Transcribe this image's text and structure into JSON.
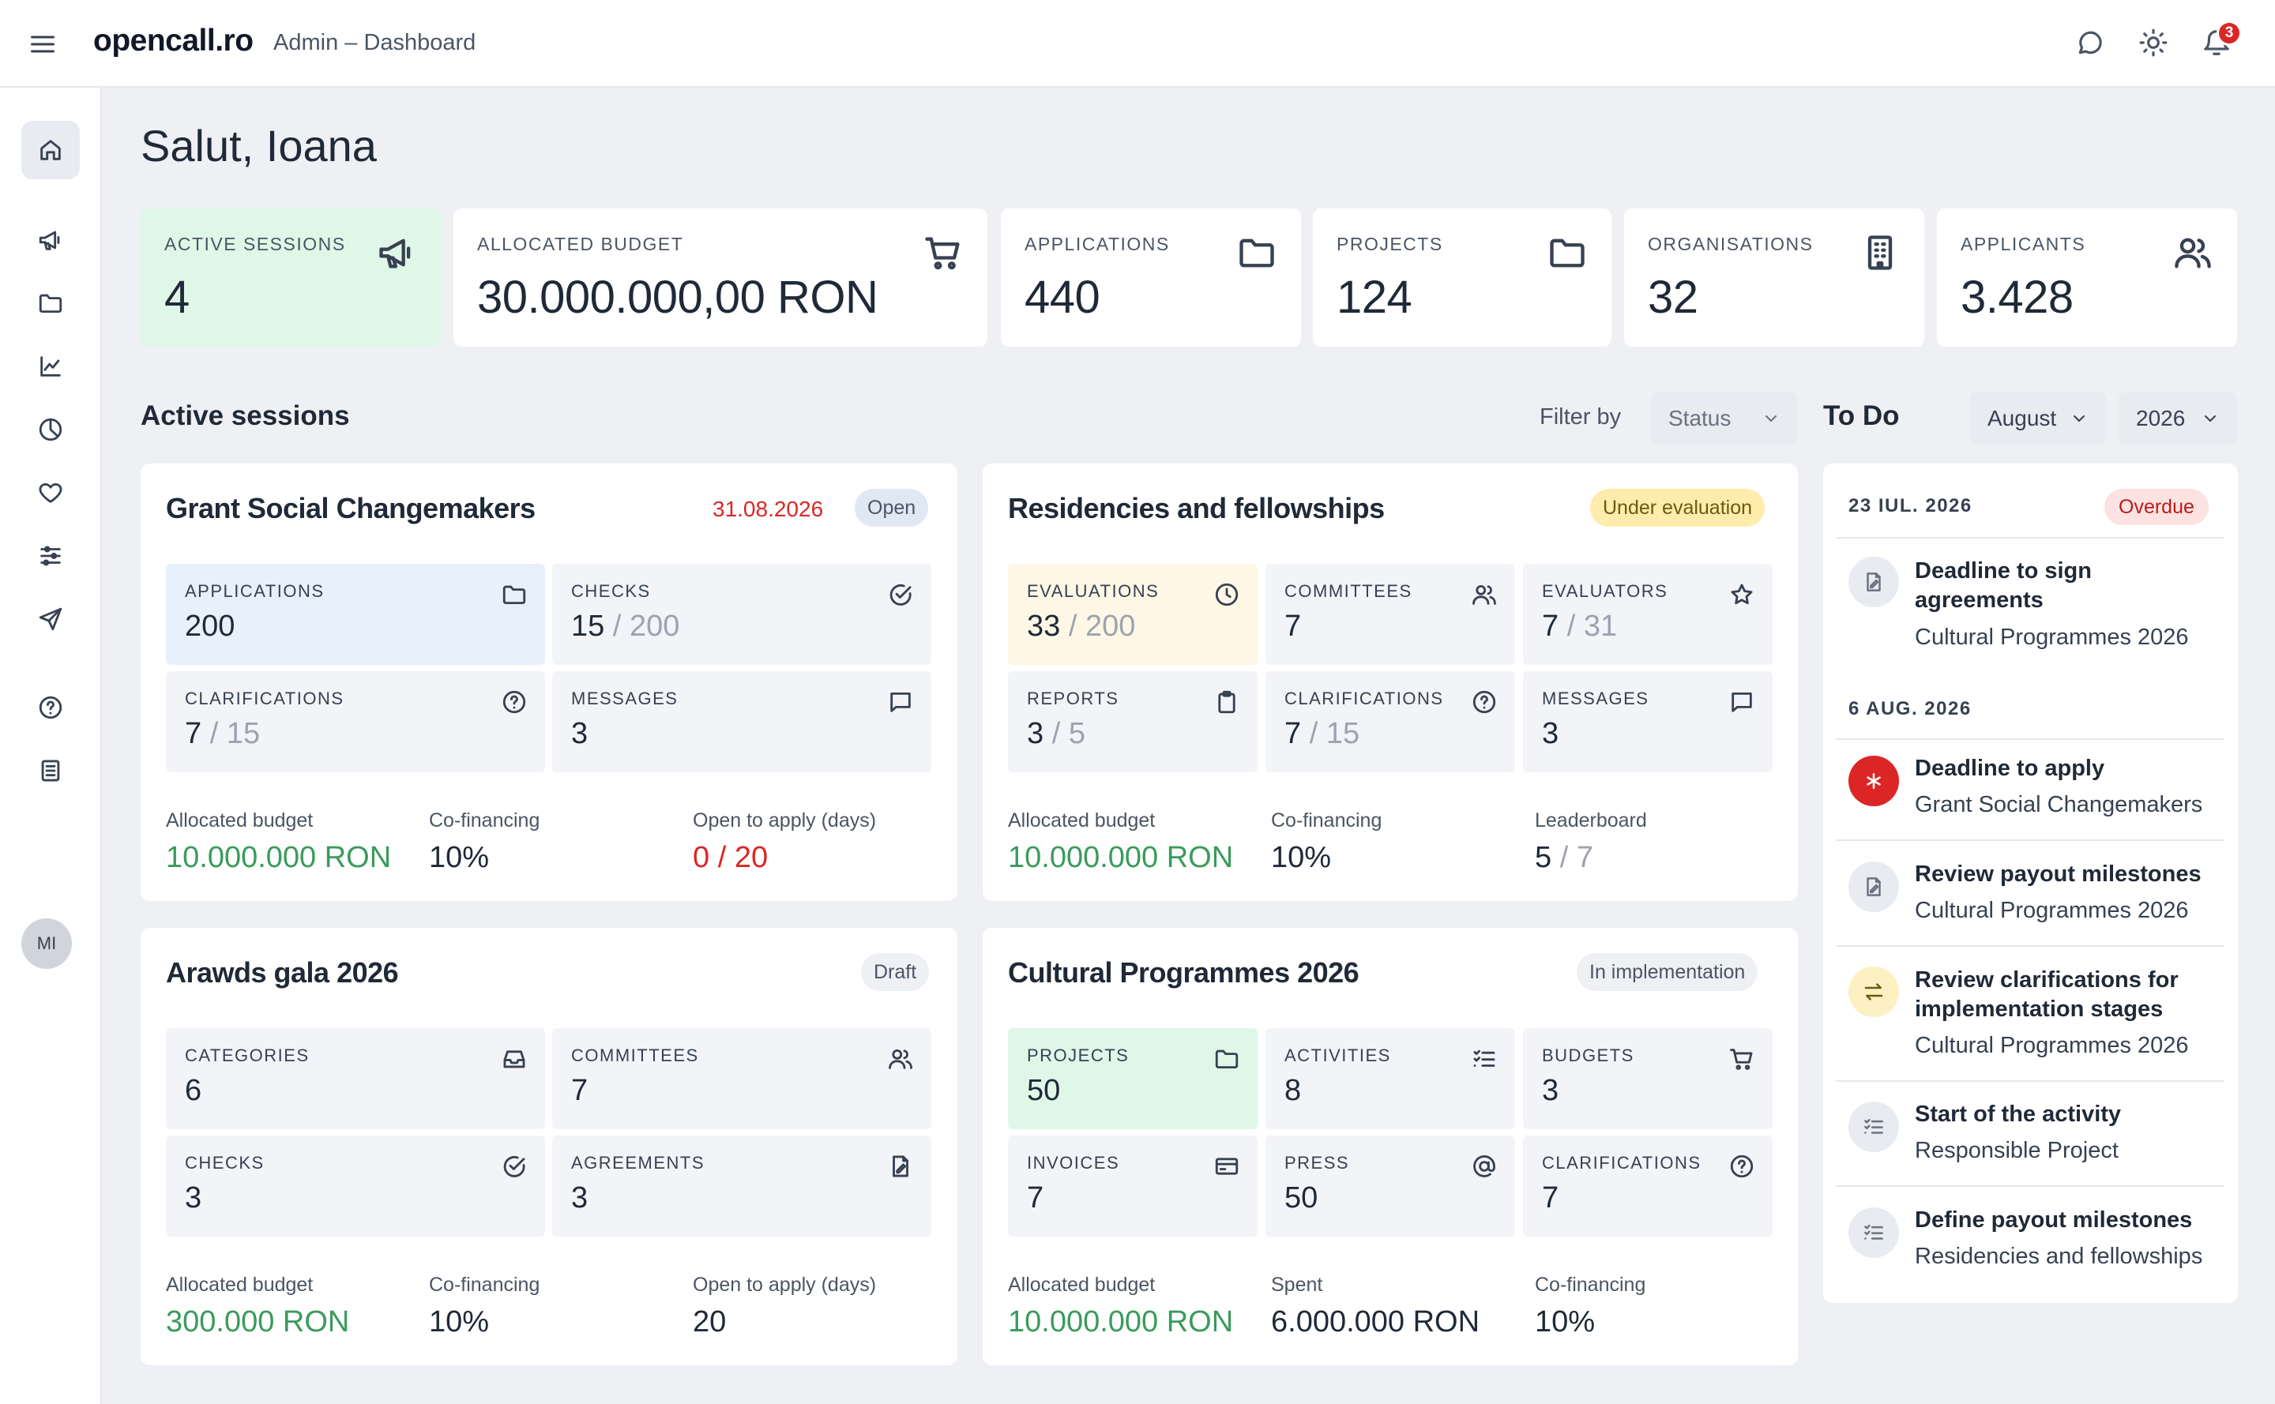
{
  "header": {
    "logo": "opencall.ro",
    "breadcrumb": "Admin – Dashboard",
    "notification_count": "3",
    "icons": [
      "menu-icon",
      "chat-icon",
      "sun-icon",
      "bell-icon"
    ]
  },
  "sidebar": {
    "items": [
      {
        "name": "home-icon",
        "active": true
      },
      {
        "name": "megaphone-icon"
      },
      {
        "name": "folder-icon"
      },
      {
        "name": "chart-line-icon"
      },
      {
        "name": "pie-chart-icon"
      },
      {
        "name": "heart-icon"
      },
      {
        "name": "sliders-icon"
      },
      {
        "name": "send-icon"
      },
      {
        "name": "help-icon"
      },
      {
        "name": "document-icon"
      }
    ],
    "avatar": "MI"
  },
  "greeting": "Salut, Ioana",
  "stats": [
    {
      "label": "ACTIVE SESSIONS",
      "value": "4",
      "icon": "megaphone-icon",
      "highlight": "#dff7e7"
    },
    {
      "label": "ALLOCATED BUDGET",
      "value": "30.000.000,00 RON",
      "icon": "cart-icon"
    },
    {
      "label": "APPLICATIONS",
      "value": "440",
      "icon": "folder-icon"
    },
    {
      "label": "PROJECTS",
      "value": "124",
      "icon": "folder-icon"
    },
    {
      "label": "ORGANISATIONS",
      "value": "32",
      "icon": "building-icon"
    },
    {
      "label": "APPLICANTS",
      "value": "3.428",
      "icon": "users-icon"
    }
  ],
  "active_sessions": {
    "title": "Active sessions",
    "filter_label": "Filter by",
    "filter_value": "Status"
  },
  "sessions": [
    {
      "title": "Grant Social Changemakers",
      "date": "31.08.2026",
      "status": "Open",
      "tiles": [
        {
          "label": "APPLICATIONS",
          "value": "200",
          "icon": "folder-icon"
        },
        {
          "label": "CHECKS",
          "value": "15",
          "sub": " / 200",
          "icon": "check-circle-icon"
        },
        {
          "label": "CLARIFICATIONS",
          "value": "7",
          "sub": " / 15",
          "icon": "question-icon"
        },
        {
          "label": "MESSAGES",
          "value": "3",
          "icon": "message-icon"
        }
      ],
      "footer": [
        {
          "label": "Allocated budget",
          "value": "10.000.000 RON"
        },
        {
          "label": "Co-financing",
          "value": "10%"
        },
        {
          "label": "Open to apply (days)",
          "value": "0",
          "sub": " / 20"
        }
      ]
    },
    {
      "title": "Residencies and fellowships",
      "status": "Under evaluation",
      "tiles": [
        {
          "label": "EVALUATIONS",
          "value": "33",
          "sub": " / 200",
          "icon": "clock-icon"
        },
        {
          "label": "COMMITTEES",
          "value": "7",
          "icon": "users-icon"
        },
        {
          "label": "EVALUATORS",
          "value": "7",
          "sub": " / 31",
          "icon": "star-icon"
        },
        {
          "label": "REPORTS",
          "value": "3",
          "sub": " / 5",
          "icon": "clipboard-icon"
        },
        {
          "label": "CLARIFICATIONS",
          "value": "7",
          "sub": " / 15",
          "icon": "question-icon"
        },
        {
          "label": "MESSAGES",
          "value": "3",
          "icon": "message-icon"
        }
      ],
      "footer": [
        {
          "label": "Allocated budget",
          "value": "10.000.000 RON"
        },
        {
          "label": "Co-financing",
          "value": "10%"
        },
        {
          "label": "Leaderboard",
          "value": "5",
          "sub": " / 7"
        }
      ]
    },
    {
      "title": "Arawds gala 2026",
      "status": "Draft",
      "tiles": [
        {
          "label": "CATEGORIES",
          "value": "6",
          "icon": "inbox-icon"
        },
        {
          "label": "COMMITTEES",
          "value": "7",
          "icon": "users-icon"
        },
        {
          "label": "CHECKS",
          "value": "3",
          "icon": "check-circle-icon"
        },
        {
          "label": "AGREEMENTS",
          "value": "3",
          "icon": "signature-icon"
        }
      ],
      "footer": [
        {
          "label": "Allocated budget",
          "value": "300.000 RON"
        },
        {
          "label": "Co-financing",
          "value": "10%"
        },
        {
          "label": "Open to apply (days)",
          "value": "20"
        }
      ]
    },
    {
      "title": "Cultural Programmes 2026",
      "status": "In implementation",
      "tiles": [
        {
          "label": "PROJECTS",
          "value": "50",
          "icon": "folder-icon"
        },
        {
          "label": "ACTIVITIES",
          "value": "8",
          "icon": "checklist-icon"
        },
        {
          "label": "BUDGETS",
          "value": "3",
          "icon": "cart-icon"
        },
        {
          "label": "INVOICES",
          "value": "7",
          "icon": "credit-card-icon"
        },
        {
          "label": "PRESS",
          "value": "50",
          "icon": "at-icon"
        },
        {
          "label": "CLARIFICATIONS",
          "value": "7",
          "icon": "question-icon"
        }
      ],
      "footer": [
        {
          "label": "Allocated budget",
          "value": "10.000.000 RON"
        },
        {
          "label": "Spent",
          "value": "6.000.000 RON"
        },
        {
          "label": "Co-financing",
          "value": "10%"
        }
      ]
    }
  ],
  "todo": {
    "title": "To Do",
    "month": "August",
    "year": "2026",
    "groups": [
      {
        "date": "23 IUL. 2026",
        "badge": "Overdue"
      },
      {
        "date": "6 AUG. 2026"
      }
    ],
    "items": [
      {
        "title": "Deadline to sign agreements",
        "subtitle": "Cultural Programmes 2026",
        "icon": "signature-icon"
      },
      {
        "title": "Deadline to apply",
        "subtitle": "Grant Social Changemakers",
        "icon": "asterisk-icon"
      },
      {
        "title": "Review payout milestones",
        "subtitle": "Cultural Programmes 2026",
        "icon": "signature-icon"
      },
      {
        "title": "Review clarifications for implementation stages",
        "subtitle": "Cultural Programmes 2026",
        "icon": "swap-icon"
      },
      {
        "title": "Start of the activity",
        "subtitle": "Responsible Project",
        "icon": "checklist-icon"
      },
      {
        "title": "Define payout milestones",
        "subtitle": "Residencies and fellowships",
        "icon": "checklist-icon"
      }
    ]
  },
  "colors": {
    "accent_green": "#3a9b5c",
    "danger_red": "#dc2626",
    "green_tile": "#dff7e7",
    "blue_tile": "#e8f0fb",
    "yellow_tile": "#fef7e6",
    "background": "#eef0f4"
  }
}
